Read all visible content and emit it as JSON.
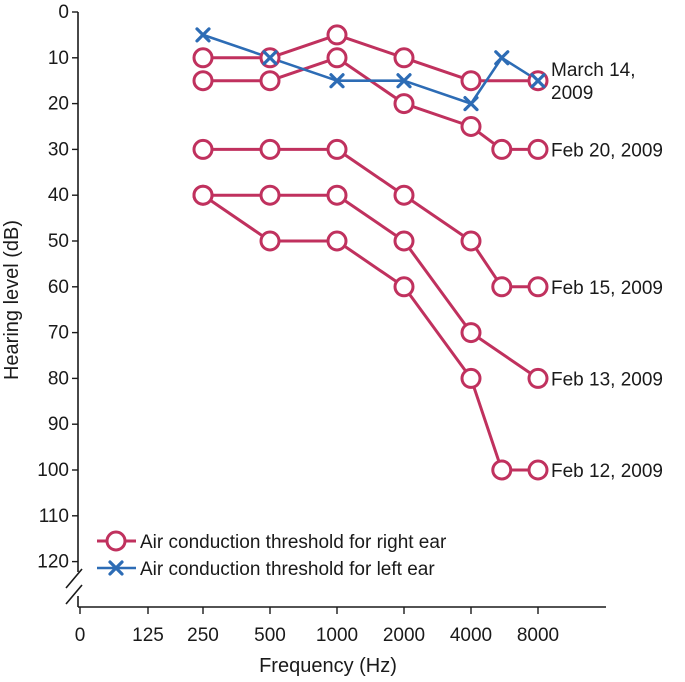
{
  "chart_data": {
    "type": "line",
    "xlabel": "Frequency (Hz)",
    "ylabel": "Hearing level (dB)",
    "x_ticks": [
      "0",
      "125",
      "250",
      "500",
      "1000",
      "2000",
      "4000",
      "8000"
    ],
    "y_ticks": [
      0,
      10,
      20,
      30,
      40,
      50,
      60,
      70,
      80,
      90,
      100,
      110,
      120
    ],
    "ylim": [
      0,
      120
    ],
    "y_inverted": true,
    "axis_break": true,
    "grid": false,
    "legend_position": "bottom-left",
    "colors": {
      "right": "#c0315e",
      "left": "#2d6cb5",
      "axis": "#1a1a1a"
    },
    "legend": [
      {
        "label": "Air conduction threshold for right ear",
        "marker": "circle",
        "color": "#c0315e"
      },
      {
        "label": "Air conduction threshold for left ear",
        "marker": "x",
        "color": "#2d6cb5"
      }
    ],
    "series": [
      {
        "ear": "right",
        "label": "March 14,\n2009",
        "label_lines": [
          "March 14,",
          "2009"
        ],
        "label_y": 15,
        "points": [
          [
            250,
            10
          ],
          [
            500,
            10
          ],
          [
            1000,
            5
          ],
          [
            2000,
            10
          ],
          [
            4000,
            15
          ],
          [
            8000,
            15
          ]
        ]
      },
      {
        "ear": "right",
        "label": "",
        "label_lines": [],
        "points": [
          [
            250,
            15
          ],
          [
            500,
            15
          ],
          [
            1000,
            10
          ],
          [
            2000,
            20
          ],
          [
            4000,
            25
          ],
          [
            5500,
            30
          ],
          [
            8000,
            30
          ]
        ]
      },
      {
        "ear": "right",
        "label": "Feb 20, 2009",
        "label_lines": [
          "Feb 20, 2009"
        ],
        "label_y": 30,
        "points": [
          [
            250,
            30
          ],
          [
            500,
            30
          ],
          [
            1000,
            30
          ],
          [
            2000,
            40
          ],
          [
            4000,
            50
          ],
          [
            5500,
            60
          ],
          [
            8000,
            60
          ]
        ]
      },
      {
        "ear": "right",
        "label": "Feb 15, 2009",
        "label_lines": [
          "Feb 15, 2009"
        ],
        "label_y": 60,
        "points": [
          [
            250,
            40
          ],
          [
            500,
            40
          ],
          [
            1000,
            40
          ],
          [
            2000,
            50
          ],
          [
            4000,
            70
          ],
          [
            8000,
            80
          ]
        ]
      },
      {
        "ear": "right",
        "label": "Feb 13, 2009",
        "label_lines": [
          "Feb 13, 2009"
        ],
        "label_y": 80,
        "points": [
          [
            250,
            40
          ],
          [
            500,
            50
          ],
          [
            1000,
            50
          ],
          [
            2000,
            60
          ],
          [
            4000,
            80
          ],
          [
            5500,
            100
          ],
          [
            8000,
            100
          ]
        ]
      },
      {
        "ear": "right",
        "label": "Feb 12, 2009",
        "label_lines": [
          "Feb 12, 2009"
        ],
        "label_y": 100,
        "points": []
      },
      {
        "ear": "left",
        "label": "",
        "points": [
          [
            250,
            5
          ],
          [
            500,
            10
          ],
          [
            1000,
            15
          ],
          [
            2000,
            15
          ],
          [
            4000,
            20
          ],
          [
            5500,
            10
          ],
          [
            8000,
            15
          ]
        ]
      }
    ]
  }
}
